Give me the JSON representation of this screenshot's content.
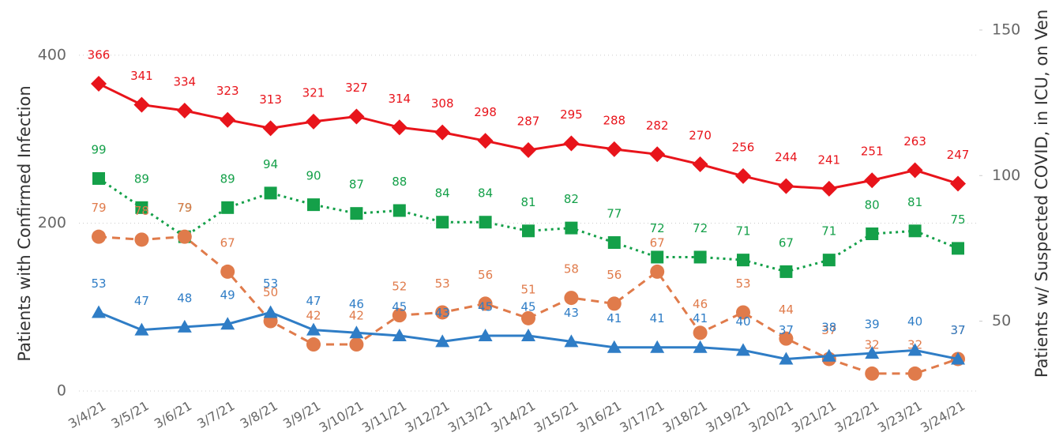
{
  "chart_data": {
    "type": "line",
    "y_label": "Patients with Confirmed Infection",
    "y2_label": "Patients w/ Suspected COVID, in ICU, on Ven",
    "categories": [
      "3/4/21",
      "3/5/21",
      "3/6/21",
      "3/7/21",
      "3/8/21",
      "3/9/21",
      "3/10/21",
      "3/11/21",
      "3/12/21",
      "3/13/21",
      "3/14/21",
      "3/15/21",
      "3/16/21",
      "3/17/21",
      "3/18/21",
      "3/19/21",
      "3/20/21",
      "3/21/21",
      "3/22/21",
      "3/23/21",
      "3/24/21"
    ],
    "ylim": [
      0,
      430
    ],
    "yticks": [
      0,
      200,
      400
    ],
    "y2lim": [
      26,
      150
    ],
    "y2ticks": [
      50,
      100,
      150
    ],
    "grid": true,
    "series": [
      {
        "color": "#e8141b",
        "marker": "diamond",
        "dash": "solid",
        "axis": "y",
        "values": [
          366,
          341,
          334,
          323,
          313,
          321,
          327,
          314,
          308,
          298,
          287,
          295,
          288,
          282,
          270,
          256,
          244,
          241,
          251,
          263,
          247
        ]
      },
      {
        "color": "#14a049",
        "marker": "square",
        "dash": "dotted",
        "axis": "y2",
        "values": [
          99,
          89,
          79,
          89,
          94,
          90,
          87,
          88,
          84,
          84,
          81,
          82,
          77,
          72,
          72,
          71,
          67,
          71,
          80,
          81,
          75
        ]
      },
      {
        "color": "#e07b4b",
        "marker": "circle",
        "dash": "dashed",
        "axis": "y2",
        "values": [
          79,
          78,
          79,
          67,
          50,
          42,
          42,
          52,
          53,
          56,
          51,
          58,
          56,
          67,
          46,
          53,
          44,
          37,
          32,
          32,
          37
        ]
      },
      {
        "color": "#2f7dc6",
        "marker": "triangle",
        "dash": "solid",
        "axis": "y2",
        "values": [
          53,
          47,
          48,
          49,
          53,
          47,
          46,
          45,
          43,
          45,
          45,
          43,
          41,
          41,
          41,
          40,
          37,
          38,
          39,
          40,
          37
        ]
      }
    ]
  }
}
